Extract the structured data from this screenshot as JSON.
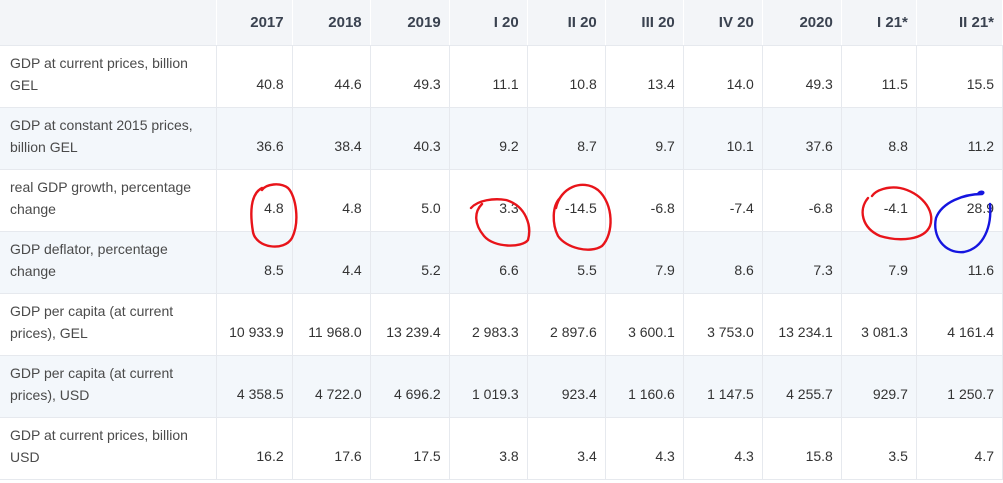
{
  "table": {
    "columns": [
      "",
      "2017",
      "2018",
      "2019",
      "I 20",
      "II 20",
      "III 20",
      "IV 20",
      "2020",
      "I 21*",
      "II 21*"
    ],
    "rows": [
      {
        "label": "GDP at current prices, billion GEL",
        "values": [
          "40.8",
          "44.6",
          "49.3",
          "11.1",
          "10.8",
          "13.4",
          "14.0",
          "49.3",
          "11.5",
          "15.5"
        ]
      },
      {
        "label": "GDP at constant 2015 prices, billion GEL",
        "values": [
          "36.6",
          "38.4",
          "40.3",
          "9.2",
          "8.7",
          "9.7",
          "10.1",
          "37.6",
          "8.8",
          "11.2"
        ]
      },
      {
        "label": "real GDP growth, percentage change",
        "values": [
          "4.8",
          "4.8",
          "5.0",
          "3.3",
          "-14.5",
          "-6.8",
          "-7.4",
          "-6.8",
          "-4.1",
          "28.9"
        ]
      },
      {
        "label": "GDP deflator, percentage change",
        "values": [
          "8.5",
          "4.4",
          "5.2",
          "6.6",
          "5.5",
          "7.9",
          "8.6",
          "7.3",
          "7.9",
          "11.6"
        ]
      },
      {
        "label": "GDP per capita (at current prices), GEL",
        "values": [
          "10 933.9",
          "11 968.0",
          "13 239.4",
          "2 983.3",
          "2 897.6",
          "3 600.1",
          "3 753.0",
          "13 234.1",
          "3 081.3",
          "4 161.4"
        ]
      },
      {
        "label": "GDP per capita (at current prices), USD",
        "values": [
          "4 358.5",
          "4 722.0",
          "4 696.2",
          "1 019.3",
          "923.4",
          "1 160.6",
          "1 147.5",
          "4 255.7",
          "929.7",
          "1 250.7"
        ]
      },
      {
        "label": "GDP at current prices, billion USD",
        "values": [
          "16.2",
          "17.6",
          "17.5",
          "3.8",
          "3.4",
          "4.3",
          "4.3",
          "15.8",
          "3.5",
          "4.7"
        ]
      }
    ]
  },
  "annotations": {
    "red_color": "#e8141a",
    "blue_color": "#1515e0",
    "circled": [
      {
        "row": 2,
        "col": 1,
        "color": "red"
      },
      {
        "row": 2,
        "col": 4,
        "color": "red"
      },
      {
        "row": 2,
        "col": 5,
        "color": "red"
      },
      {
        "row": 2,
        "col": 9,
        "color": "red"
      },
      {
        "row": 2,
        "col": 10,
        "color": "blue"
      }
    ]
  }
}
